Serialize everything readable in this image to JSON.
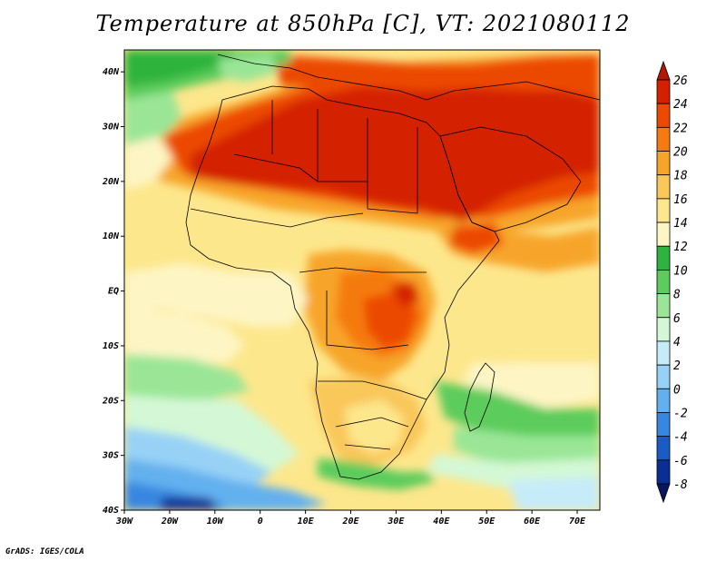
{
  "title": "Temperature at 850hPa [C], VT: 2021080112",
  "credit": "GrADS: IGES/COLA",
  "map": {
    "lon_range": [
      -30,
      75
    ],
    "lat_range": [
      -40,
      44
    ],
    "lon_ticks": [
      "30W",
      "20W",
      "10W",
      "0",
      "10E",
      "20E",
      "30E",
      "40E",
      "50E",
      "60E",
      "70E"
    ],
    "lat_ticks": [
      "40N",
      "30N",
      "20N",
      "10N",
      "EQ",
      "10S",
      "20S",
      "30S",
      "40S"
    ]
  },
  "colorbar": {
    "labels": [
      "26",
      "24",
      "22",
      "20",
      "18",
      "16",
      "14",
      "12",
      "10",
      "8",
      "6",
      "4",
      "2",
      "0",
      "-2",
      "-4",
      "-6",
      "-8"
    ],
    "colors": [
      "#b01800",
      "#d42000",
      "#ec4a00",
      "#f57a10",
      "#f7a52a",
      "#f9c75a",
      "#fde78c",
      "#fdf5c4",
      "#2eb43e",
      "#5ccc5c",
      "#9ae696",
      "#d4f8d6",
      "#c6ecfa",
      "#97d2f6",
      "#63b0ee",
      "#3786e0",
      "#1a5cc4",
      "#0a2e94",
      "#061660"
    ],
    "colors_note_top_to_bottom": true
  },
  "colors": {
    "hot": "#d42000",
    "warm": "#f57a10",
    "mild": "#fde78c",
    "cool": "#5ccc5c",
    "cold": "#63b0ee",
    "coldest": "#0a2e94"
  }
}
